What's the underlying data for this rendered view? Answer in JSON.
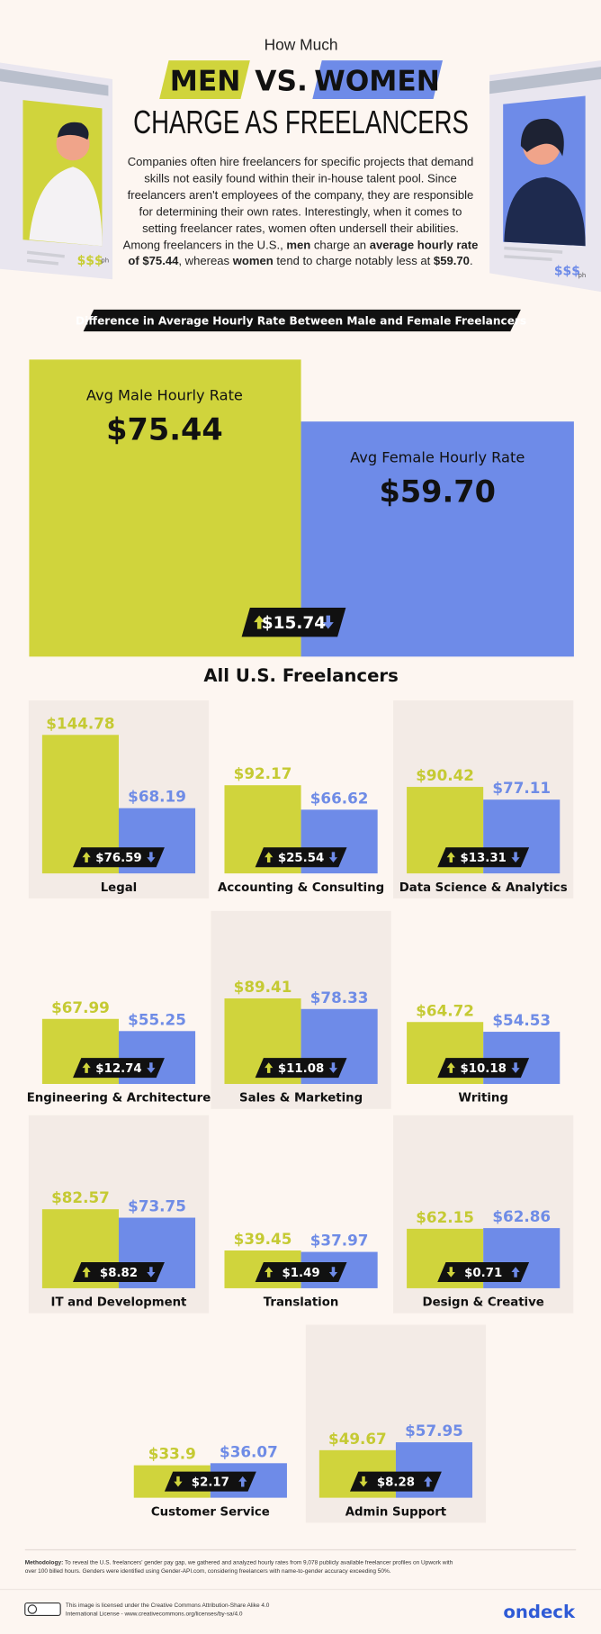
{
  "header": {
    "kicker": "How Much",
    "men": "MEN",
    "vs": "VS.",
    "women": "WOMEN",
    "title": "CHARGE AS FREELANCERS",
    "intro": [
      "Companies often hire freelancers for specific projects that demand skills not easily found within their in-house talent pool. Since freelancers aren't employees of the company, they are responsible for determining their own rates. Interestingly, when it comes to setting freelancer rates, women often undersell their abilities. Among freelancers in the U.S., ",
      "men",
      " charge an ",
      "average hourly rate of $75.44",
      ", whereas ",
      "women",
      " tend to charge notably less at ",
      "$59.70",
      "."
    ],
    "left_card": {
      "price": "$$$",
      "unit": "ph"
    },
    "right_card": {
      "price": "$$$",
      "unit": "ph"
    },
    "banner": "Difference in Average Hourly Rate Between Male and Female Freelancers"
  },
  "chart_data": [
    {
      "type": "bar",
      "title": "All U.S. Freelancers",
      "difference_label": "$15.74",
      "series": [
        {
          "name": "Avg Male Hourly Rate",
          "color": "#d0d43c",
          "values": [
            75.44
          ],
          "value_labels": [
            "$75.44"
          ]
        },
        {
          "name": "Avg Female Hourly Rate",
          "color": "#6e8be8",
          "values": [
            59.7
          ],
          "value_labels": [
            "$59.70"
          ]
        }
      ]
    },
    {
      "type": "bar",
      "title": "Legal",
      "difference_label": "$76.59",
      "series": [
        {
          "color": "#d0d43c",
          "values": [
            144.78
          ],
          "value_labels": [
            "$144.78"
          ]
        },
        {
          "color": "#6e8be8",
          "values": [
            68.19
          ],
          "value_labels": [
            "$68.19"
          ]
        }
      ]
    },
    {
      "type": "bar",
      "title": "Accounting & Consulting",
      "difference_label": "$25.54",
      "series": [
        {
          "color": "#d0d43c",
          "values": [
            92.17
          ],
          "value_labels": [
            "$92.17"
          ]
        },
        {
          "color": "#6e8be8",
          "values": [
            66.62
          ],
          "value_labels": [
            "$66.62"
          ]
        }
      ]
    },
    {
      "type": "bar",
      "title": "Data Science & Analytics",
      "difference_label": "$13.31",
      "series": [
        {
          "color": "#d0d43c",
          "values": [
            90.42
          ],
          "value_labels": [
            "$90.42"
          ]
        },
        {
          "color": "#6e8be8",
          "values": [
            77.11
          ],
          "value_labels": [
            "$77.11"
          ]
        }
      ]
    },
    {
      "type": "bar",
      "title": "Engineering & Architecture",
      "difference_label": "$12.74",
      "series": [
        {
          "color": "#d0d43c",
          "values": [
            67.99
          ],
          "value_labels": [
            "$67.99"
          ]
        },
        {
          "color": "#6e8be8",
          "values": [
            55.25
          ],
          "value_labels": [
            "$55.25"
          ]
        }
      ]
    },
    {
      "type": "bar",
      "title": "Sales & Marketing",
      "difference_label": "$11.08",
      "series": [
        {
          "color": "#d0d43c",
          "values": [
            89.41
          ],
          "value_labels": [
            "$89.41"
          ]
        },
        {
          "color": "#6e8be8",
          "values": [
            78.33
          ],
          "value_labels": [
            "$78.33"
          ]
        }
      ]
    },
    {
      "type": "bar",
      "title": "Writing",
      "difference_label": "$10.18",
      "series": [
        {
          "color": "#d0d43c",
          "values": [
            64.72
          ],
          "value_labels": [
            "$64.72"
          ]
        },
        {
          "color": "#6e8be8",
          "values": [
            54.53
          ],
          "value_labels": [
            "$54.53"
          ]
        }
      ]
    },
    {
      "type": "bar",
      "title": "IT and Development",
      "difference_label": "$8.82",
      "series": [
        {
          "color": "#d0d43c",
          "values": [
            82.57
          ],
          "value_labels": [
            "$82.57"
          ]
        },
        {
          "color": "#6e8be8",
          "values": [
            73.75
          ],
          "value_labels": [
            "$73.75"
          ]
        }
      ]
    },
    {
      "type": "bar",
      "title": "Translation",
      "difference_label": "$1.49",
      "series": [
        {
          "color": "#d0d43c",
          "values": [
            39.45
          ],
          "value_labels": [
            "$39.45"
          ]
        },
        {
          "color": "#6e8be8",
          "values": [
            37.97
          ],
          "value_labels": [
            "$37.97"
          ]
        }
      ]
    },
    {
      "type": "bar",
      "title": "Design & Creative",
      "difference_label": "$0.71",
      "series": [
        {
          "color": "#d0d43c",
          "values": [
            62.15
          ],
          "value_labels": [
            "$62.15"
          ]
        },
        {
          "color": "#6e8be8",
          "values": [
            62.86
          ],
          "value_labels": [
            "$62.86"
          ]
        }
      ]
    },
    {
      "type": "bar",
      "title": "Customer Service",
      "difference_label": "$2.17",
      "series": [
        {
          "color": "#d0d43c",
          "values": [
            33.9
          ],
          "value_labels": [
            "$33.9"
          ]
        },
        {
          "color": "#6e8be8",
          "values": [
            36.07
          ],
          "value_labels": [
            "$36.07"
          ]
        }
      ]
    },
    {
      "type": "bar",
      "title": "Admin Support",
      "difference_label": "$8.28",
      "series": [
        {
          "color": "#d0d43c",
          "values": [
            49.67
          ],
          "value_labels": [
            "$49.67"
          ]
        },
        {
          "color": "#6e8be8",
          "values": [
            57.95
          ],
          "value_labels": [
            "$57.95"
          ]
        }
      ]
    }
  ],
  "footer": {
    "methodology_label": "Methodology:",
    "methodology": " To reveal the U.S. freelancers' gender pay gap, we gathered and analyzed hourly rates from 9,078 publicly available freelancer profiles on Upwork with over 100 billed hours. Genders were identified using Gender-API.com, considering freelancers with name-to-gender accuracy exceeding 50%.",
    "license": "This image is licensed under the Creative Commons Attribution-Share Alike 4.0 International License - www.creativecommons.org/licenses/by-sa/4.0",
    "brand": "ondeck"
  }
}
